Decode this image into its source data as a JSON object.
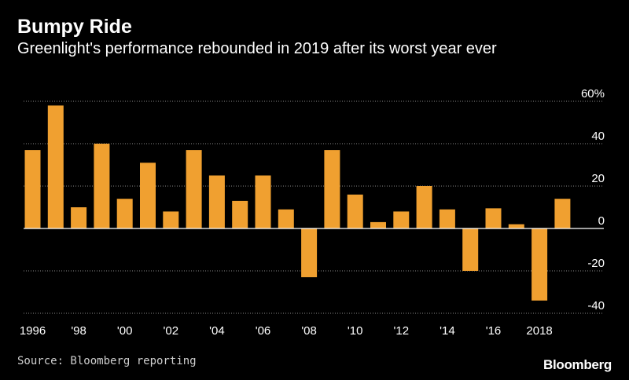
{
  "header": {
    "title": "Bumpy Ride",
    "subtitle": "Greenlight's performance rebounded in 2019 after its worst year ever"
  },
  "footer": {
    "source": "Source: Bloomberg reporting",
    "brand": "Bloomberg"
  },
  "colors": {
    "bar": "#f0a030",
    "background": "#000000",
    "gridline": "#8a8a8a",
    "zero_line": "#ffffff"
  },
  "chart_data": {
    "type": "bar",
    "title": "Bumpy Ride",
    "subtitle": "Greenlight's performance rebounded in 2019 after its worst year ever",
    "xlabel": "",
    "ylabel": "",
    "categories": [
      "1996",
      "1997",
      "1998",
      "1999",
      "2000",
      "2001",
      "2002",
      "2003",
      "2004",
      "2005",
      "2006",
      "2007",
      "2008",
      "2009",
      "2010",
      "2011",
      "2012",
      "2013",
      "2014",
      "2015",
      "2016",
      "2017",
      "2018",
      "2019"
    ],
    "values": [
      37,
      58,
      10,
      40,
      14,
      31,
      8,
      37,
      25,
      13,
      25,
      9,
      -23,
      37,
      16,
      3,
      8,
      20,
      9,
      -20,
      9.5,
      2,
      -34,
      14
    ],
    "ylim": [
      -40,
      60
    ],
    "y_ticks": [
      60,
      40,
      20,
      0,
      -20,
      -40
    ],
    "y_tick_labels": [
      "60%",
      "40",
      "20",
      "0",
      "-20",
      "-40"
    ],
    "x_tick_labels": [
      "1996",
      "'98",
      "'00",
      "'02",
      "'04",
      "'06",
      "'08",
      "'10",
      "'12",
      "'14",
      "'16",
      "2018"
    ],
    "x_tick_years": [
      "1996",
      "1998",
      "2000",
      "2002",
      "2004",
      "2006",
      "2008",
      "2010",
      "2012",
      "2014",
      "2016",
      "2018"
    ],
    "y_axis_position": "right",
    "grid": true
  }
}
